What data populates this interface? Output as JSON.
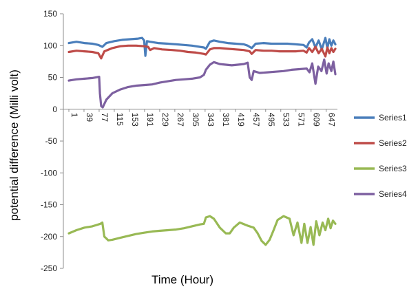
{
  "chart_data": {
    "type": "line",
    "xlabel": "Time (Hour)",
    "ylabel": "potential difference (Milli volt)",
    "ylim": [
      -250,
      150
    ],
    "y_ticks": [
      150,
      100,
      50,
      0,
      -50,
      -100,
      -150,
      -200,
      -250
    ],
    "xlim": [
      1,
      670
    ],
    "x_tick_labels": [
      "1",
      "39",
      "77",
      "115",
      "153",
      "191",
      "229",
      "267",
      "305",
      "343",
      "381",
      "419",
      "457",
      "495",
      "533",
      "571",
      "609",
      "647"
    ],
    "grid": false,
    "legend_position": "right",
    "series": [
      {
        "name": "Series1",
        "color": "#4a7ebb",
        "points": [
          [
            1,
            104
          ],
          [
            20,
            106
          ],
          [
            40,
            104
          ],
          [
            60,
            103
          ],
          [
            75,
            101
          ],
          [
            85,
            98
          ],
          [
            95,
            104
          ],
          [
            115,
            107
          ],
          [
            135,
            109
          ],
          [
            155,
            110
          ],
          [
            175,
            111
          ],
          [
            185,
            112
          ],
          [
            190,
            108
          ],
          [
            193,
            84
          ],
          [
            197,
            107
          ],
          [
            205,
            106
          ],
          [
            225,
            104
          ],
          [
            250,
            103
          ],
          [
            270,
            102
          ],
          [
            290,
            101
          ],
          [
            310,
            100
          ],
          [
            340,
            97
          ],
          [
            345,
            95
          ],
          [
            355,
            106
          ],
          [
            365,
            108
          ],
          [
            380,
            106
          ],
          [
            400,
            104
          ],
          [
            420,
            103
          ],
          [
            440,
            102
          ],
          [
            450,
            100
          ],
          [
            460,
            96
          ],
          [
            470,
            103
          ],
          [
            490,
            104
          ],
          [
            510,
            103
          ],
          [
            530,
            103
          ],
          [
            550,
            103
          ],
          [
            570,
            102
          ],
          [
            590,
            101
          ],
          [
            598,
            97
          ],
          [
            604,
            105
          ],
          [
            612,
            110
          ],
          [
            620,
            97
          ],
          [
            628,
            108
          ],
          [
            636,
            94
          ],
          [
            645,
            112
          ],
          [
            650,
            96
          ],
          [
            655,
            110
          ],
          [
            660,
            100
          ],
          [
            665,
            108
          ],
          [
            670,
            102
          ]
        ]
      },
      {
        "name": "Series2",
        "color": "#be4b48",
        "points": [
          [
            1,
            90
          ],
          [
            20,
            92
          ],
          [
            40,
            91
          ],
          [
            60,
            90
          ],
          [
            75,
            88
          ],
          [
            82,
            80
          ],
          [
            90,
            91
          ],
          [
            110,
            96
          ],
          [
            130,
            99
          ],
          [
            150,
            100
          ],
          [
            170,
            100
          ],
          [
            190,
            99
          ],
          [
            200,
            98
          ],
          [
            205,
            93
          ],
          [
            215,
            96
          ],
          [
            235,
            94
          ],
          [
            260,
            93
          ],
          [
            280,
            92
          ],
          [
            300,
            90
          ],
          [
            320,
            89
          ],
          [
            340,
            87
          ],
          [
            345,
            86
          ],
          [
            355,
            94
          ],
          [
            365,
            96
          ],
          [
            380,
            96
          ],
          [
            400,
            95
          ],
          [
            420,
            94
          ],
          [
            440,
            93
          ],
          [
            455,
            91
          ],
          [
            460,
            87
          ],
          [
            470,
            93
          ],
          [
            490,
            92
          ],
          [
            510,
            92
          ],
          [
            530,
            91
          ],
          [
            550,
            91
          ],
          [
            570,
            91
          ],
          [
            590,
            92
          ],
          [
            598,
            89
          ],
          [
            604,
            96
          ],
          [
            612,
            90
          ],
          [
            620,
            98
          ],
          [
            628,
            88
          ],
          [
            636,
            95
          ],
          [
            645,
            83
          ],
          [
            650,
            97
          ],
          [
            655,
            88
          ],
          [
            660,
            96
          ],
          [
            665,
            90
          ],
          [
            670,
            95
          ]
        ]
      },
      {
        "name": "Series3",
        "color": "#98b954",
        "points": [
          [
            1,
            -195
          ],
          [
            20,
            -190
          ],
          [
            40,
            -186
          ],
          [
            60,
            -184
          ],
          [
            80,
            -180
          ],
          [
            85,
            -178
          ],
          [
            90,
            -200
          ],
          [
            100,
            -206
          ],
          [
            110,
            -205
          ],
          [
            130,
            -202
          ],
          [
            150,
            -199
          ],
          [
            170,
            -196
          ],
          [
            190,
            -194
          ],
          [
            210,
            -192
          ],
          [
            230,
            -191
          ],
          [
            250,
            -190
          ],
          [
            270,
            -189
          ],
          [
            290,
            -187
          ],
          [
            310,
            -184
          ],
          [
            330,
            -181
          ],
          [
            340,
            -180
          ],
          [
            345,
            -170
          ],
          [
            355,
            -168
          ],
          [
            365,
            -172
          ],
          [
            380,
            -186
          ],
          [
            395,
            -195
          ],
          [
            405,
            -195
          ],
          [
            415,
            -186
          ],
          [
            430,
            -178
          ],
          [
            450,
            -183
          ],
          [
            465,
            -186
          ],
          [
            475,
            -195
          ],
          [
            485,
            -207
          ],
          [
            495,
            -213
          ],
          [
            505,
            -205
          ],
          [
            515,
            -190
          ],
          [
            525,
            -174
          ],
          [
            540,
            -168
          ],
          [
            555,
            -172
          ],
          [
            565,
            -198
          ],
          [
            575,
            -178
          ],
          [
            585,
            -210
          ],
          [
            592,
            -180
          ],
          [
            600,
            -210
          ],
          [
            608,
            -185
          ],
          [
            615,
            -213
          ],
          [
            622,
            -176
          ],
          [
            630,
            -198
          ],
          [
            638,
            -178
          ],
          [
            645,
            -190
          ],
          [
            652,
            -172
          ],
          [
            658,
            -187
          ],
          [
            664,
            -175
          ],
          [
            670,
            -180
          ]
        ]
      },
      {
        "name": "Series4",
        "color": "#7d60a0",
        "points": [
          [
            1,
            45
          ],
          [
            20,
            47
          ],
          [
            40,
            48
          ],
          [
            60,
            49
          ],
          [
            77,
            51
          ],
          [
            79,
            25
          ],
          [
            82,
            5
          ],
          [
            86,
            3
          ],
          [
            95,
            15
          ],
          [
            110,
            25
          ],
          [
            130,
            31
          ],
          [
            150,
            35
          ],
          [
            170,
            37
          ],
          [
            190,
            38
          ],
          [
            210,
            39
          ],
          [
            230,
            42
          ],
          [
            250,
            44
          ],
          [
            270,
            46
          ],
          [
            290,
            47
          ],
          [
            310,
            48
          ],
          [
            330,
            50
          ],
          [
            340,
            54
          ],
          [
            345,
            62
          ],
          [
            355,
            70
          ],
          [
            365,
            74
          ],
          [
            380,
            71
          ],
          [
            395,
            70
          ],
          [
            410,
            69
          ],
          [
            425,
            70
          ],
          [
            440,
            71
          ],
          [
            450,
            73
          ],
          [
            455,
            50
          ],
          [
            460,
            46
          ],
          [
            465,
            60
          ],
          [
            480,
            57
          ],
          [
            500,
            58
          ],
          [
            520,
            59
          ],
          [
            540,
            60
          ],
          [
            560,
            62
          ],
          [
            580,
            63
          ],
          [
            598,
            64
          ],
          [
            605,
            58
          ],
          [
            612,
            72
          ],
          [
            620,
            40
          ],
          [
            627,
            67
          ],
          [
            635,
            60
          ],
          [
            642,
            78
          ],
          [
            648,
            56
          ],
          [
            653,
            72
          ],
          [
            660,
            60
          ],
          [
            665,
            75
          ],
          [
            670,
            55
          ]
        ]
      }
    ]
  }
}
